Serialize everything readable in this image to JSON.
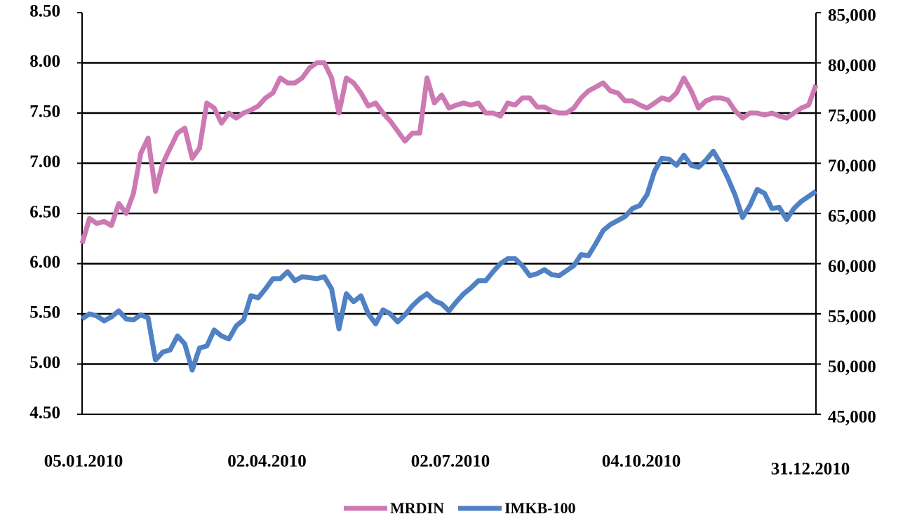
{
  "chart_data": {
    "type": "line",
    "categories": [
      "05.01.2010",
      null,
      null,
      null,
      null,
      null,
      null,
      null,
      null,
      null,
      null,
      null,
      null,
      null,
      null,
      null,
      null,
      null,
      null,
      null,
      null,
      null,
      null,
      null,
      null,
      "02.04.2010",
      null,
      null,
      null,
      null,
      null,
      null,
      null,
      null,
      null,
      null,
      null,
      null,
      null,
      null,
      null,
      null,
      null,
      null,
      null,
      null,
      null,
      null,
      null,
      null,
      "02.07.2010",
      null,
      null,
      null,
      null,
      null,
      null,
      null,
      null,
      null,
      null,
      null,
      null,
      null,
      null,
      null,
      null,
      null,
      null,
      null,
      null,
      null,
      null,
      null,
      null,
      null,
      "04.10.2010",
      null,
      null,
      null,
      null,
      null,
      null,
      null,
      null,
      null,
      null,
      null,
      null,
      null,
      null,
      null,
      null,
      null,
      null,
      null,
      null,
      null,
      null,
      null,
      "31.12.2010"
    ],
    "series": [
      {
        "name": "MRDIN",
        "color": "#cc79b4",
        "axis": "y",
        "values": [
          6.2,
          6.45,
          6.4,
          6.42,
          6.38,
          6.6,
          6.5,
          6.7,
          7.1,
          7.25,
          6.72,
          7.0,
          7.15,
          7.3,
          7.35,
          7.05,
          7.15,
          7.6,
          7.55,
          7.4,
          7.5,
          7.45,
          7.5,
          7.53,
          7.57,
          7.65,
          7.7,
          7.85,
          7.8,
          7.8,
          7.85,
          7.95,
          8.0,
          8.0,
          7.85,
          7.5,
          7.85,
          7.8,
          7.7,
          7.57,
          7.6,
          7.5,
          7.42,
          7.32,
          7.22,
          7.3,
          7.3,
          7.85,
          7.6,
          7.68,
          7.55,
          7.58,
          7.6,
          7.58,
          7.6,
          7.5,
          7.5,
          7.47,
          7.6,
          7.58,
          7.65,
          7.65,
          7.56,
          7.56,
          7.52,
          7.5,
          7.5,
          7.55,
          7.65,
          7.72,
          7.76,
          7.8,
          7.72,
          7.7,
          7.62,
          7.62,
          7.58,
          7.55,
          7.6,
          7.65,
          7.63,
          7.7,
          7.85,
          7.72,
          7.55,
          7.62,
          7.65,
          7.65,
          7.63,
          7.52,
          7.45,
          7.5,
          7.5,
          7.48,
          7.5,
          7.47,
          7.45,
          7.5,
          7.55,
          7.58,
          7.78
        ]
      },
      {
        "name": "IMKB-100",
        "color": "#4f81c4",
        "axis": "y2",
        "values": [
          54500,
          55000,
          54800,
          54300,
          54700,
          55300,
          54500,
          54400,
          54900,
          54600,
          50400,
          51200,
          51400,
          52800,
          52000,
          49400,
          51600,
          51800,
          53400,
          52800,
          52500,
          53800,
          54400,
          56800,
          56600,
          57500,
          58500,
          58500,
          59200,
          58300,
          58700,
          58600,
          58500,
          58700,
          57500,
          53500,
          57000,
          56200,
          56800,
          55000,
          54000,
          55400,
          55000,
          54200,
          54900,
          55800,
          56500,
          57000,
          56300,
          56000,
          55300,
          56200,
          57000,
          57600,
          58300,
          58300,
          59200,
          60000,
          60500,
          60500,
          59800,
          58800,
          59000,
          59400,
          58900,
          58800,
          59300,
          59800,
          60900,
          60800,
          62000,
          63300,
          63900,
          64300,
          64700,
          65500,
          65800,
          66900,
          69200,
          70500,
          70400,
          69800,
          70800,
          69800,
          69600,
          70300,
          71200,
          70000,
          68500,
          66800,
          64600,
          65800,
          67400,
          67000,
          65500,
          65600,
          64400,
          65500,
          66200,
          66700,
          67200
        ]
      }
    ],
    "ylim": [
      4.5,
      8.5
    ],
    "yticks": [
      {
        "value": 4.5,
        "label": "4.50"
      },
      {
        "value": 5,
        "label": "5.00"
      },
      {
        "value": 5.5,
        "label": "5.50"
      },
      {
        "value": 6,
        "label": "6.00"
      },
      {
        "value": 6.5,
        "label": "6.50"
      },
      {
        "value": 7,
        "label": "7.00"
      },
      {
        "value": 7.5,
        "label": "7.50"
      },
      {
        "value": 8,
        "label": "8.00"
      },
      {
        "value": 8.5,
        "label": "8.50"
      }
    ],
    "y2lim": [
      45000,
      85000
    ],
    "y2ticks": [
      {
        "value": 45000,
        "label": "45,000"
      },
      {
        "value": 50000,
        "label": "50,000"
      },
      {
        "value": 55000,
        "label": "55,000"
      },
      {
        "value": 60000,
        "label": "60,000"
      },
      {
        "value": 65000,
        "label": "65,000"
      },
      {
        "value": 70000,
        "label": "70,000"
      },
      {
        "value": 75000,
        "label": "75,000"
      },
      {
        "value": 80000,
        "label": "80,000"
      },
      {
        "value": 85000,
        "label": "85,000"
      }
    ],
    "grid": true,
    "legend": "bottom"
  }
}
